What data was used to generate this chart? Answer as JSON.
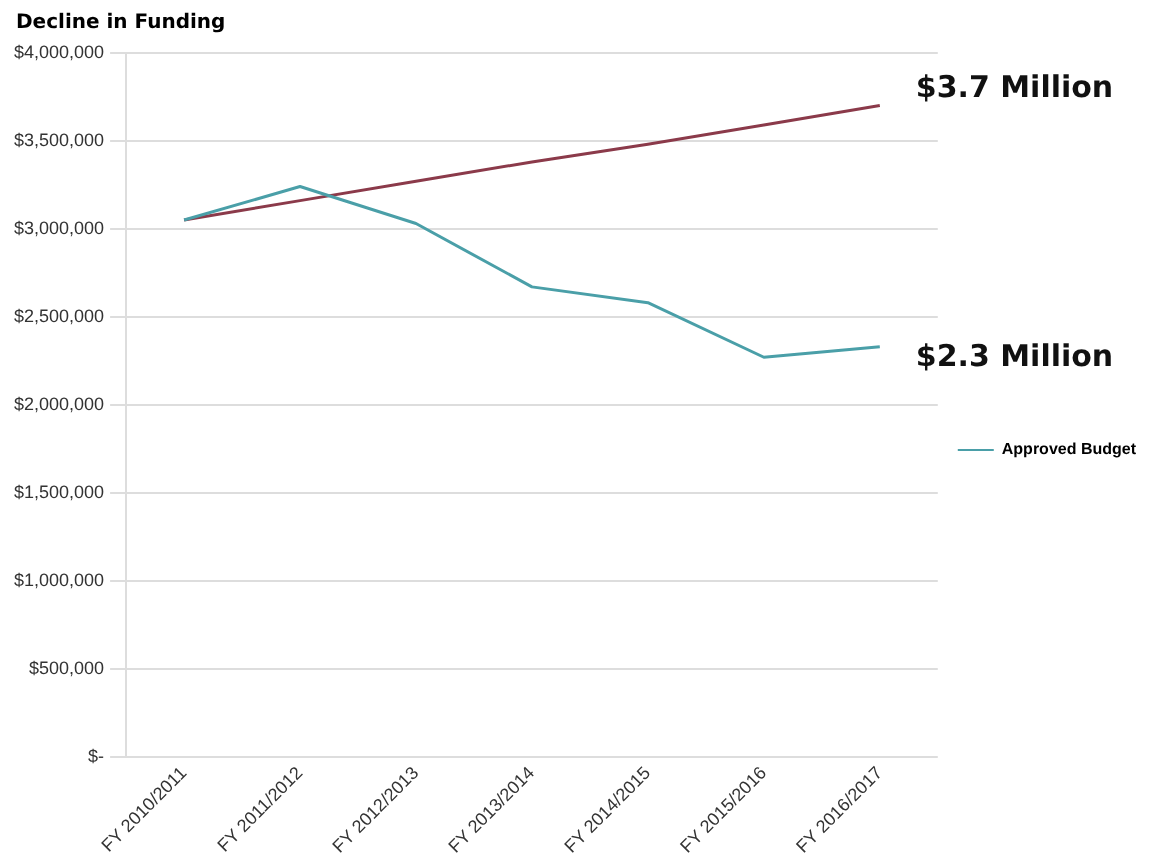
{
  "chart_data": {
    "type": "line",
    "title": "Decline in Funding",
    "categories": [
      "FY 2010/2011",
      "FY 2011/2012",
      "FY 2012/2013",
      "FY 2013/2014",
      "FY 2014/2015",
      "FY 2015/2016",
      "FY 2016/2017"
    ],
    "series": [
      {
        "name": "Approved Budget",
        "color": "#4a9fa8",
        "values": [
          3050000,
          3240000,
          3030000,
          2670000,
          2580000,
          2270000,
          2330000
        ]
      },
      {
        "color": "#8b3a4a",
        "values": [
          3050000,
          3160000,
          3270000,
          3380000,
          3480000,
          3590000,
          3700000
        ]
      }
    ],
    "ylim": [
      0,
      4000000
    ],
    "yticks": [
      {
        "value": 0,
        "label": "$-"
      },
      {
        "value": 500000,
        "label": "$500,000"
      },
      {
        "value": 1000000,
        "label": "$1,000,000"
      },
      {
        "value": 1500000,
        "label": "$1,500,000"
      },
      {
        "value": 2000000,
        "label": "$2,000,000"
      },
      {
        "value": 2500000,
        "label": "$2,500,000"
      },
      {
        "value": 3000000,
        "label": "$3,000,000"
      },
      {
        "value": 3500000,
        "label": "$3,500,000"
      },
      {
        "value": 4000000,
        "label": "$4,000,000"
      }
    ],
    "annotations": [
      {
        "text": "$3.7 Million",
        "x": "FY 2016/2017",
        "y": 3700000
      },
      {
        "text": "$2.3 Million",
        "x": "FY 2016/2017",
        "y": 2330000
      }
    ],
    "grid": "y",
    "legend": "right",
    "marker": "none",
    "line_style": "solid"
  }
}
